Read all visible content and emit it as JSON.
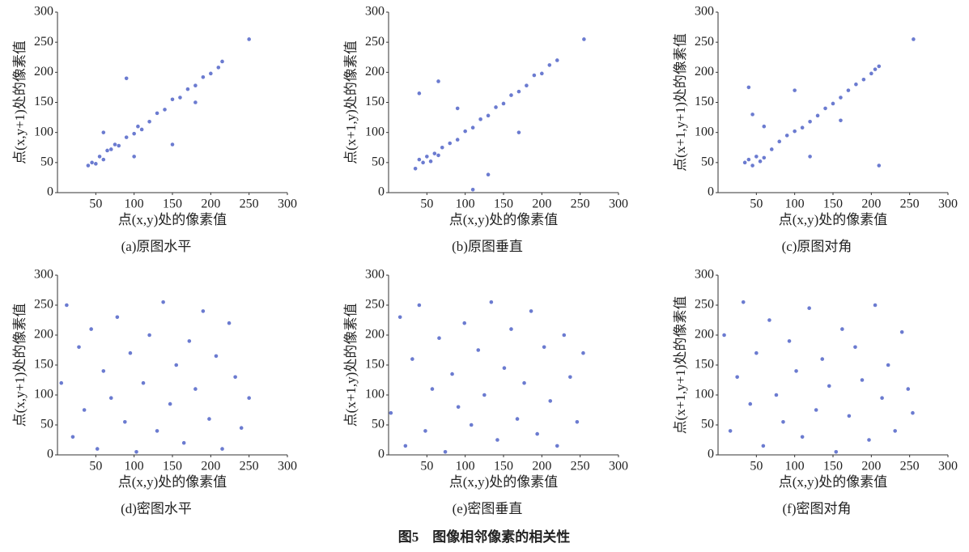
{
  "figure_caption": "图5　图像相邻像素的相关性",
  "chart_data": [
    {
      "type": "scatter",
      "caption": "(a)原图水平",
      "xlabel": "点(x,y)处的像素值",
      "ylabel": "点(x,y+1)处的像素值",
      "color": "#3a4fc0",
      "xlim": [
        0,
        300
      ],
      "ylim": [
        0,
        300
      ],
      "xticks": [
        50,
        100,
        150,
        200,
        250,
        300
      ],
      "yticks": [
        0,
        50,
        100,
        150,
        200,
        250,
        300
      ],
      "x": [
        40,
        45,
        50,
        55,
        60,
        65,
        70,
        75,
        80,
        90,
        100,
        105,
        110,
        120,
        130,
        140,
        150,
        160,
        170,
        180,
        190,
        200,
        210,
        215,
        90,
        150,
        250,
        60,
        100,
        180
      ],
      "y": [
        45,
        50,
        48,
        60,
        55,
        70,
        72,
        80,
        78,
        92,
        98,
        110,
        105,
        118,
        132,
        138,
        155,
        158,
        172,
        178,
        192,
        198,
        208,
        218,
        190,
        80,
        255,
        100,
        60,
        150
      ]
    },
    {
      "type": "scatter",
      "caption": "(b)原图垂直",
      "xlabel": "点(x,y)处的像素值",
      "ylabel": "点(x+1,y)处的像素值",
      "color": "#3a4fc0",
      "xlim": [
        0,
        300
      ],
      "ylim": [
        0,
        300
      ],
      "xticks": [
        50,
        100,
        150,
        200,
        250,
        300
      ],
      "yticks": [
        0,
        50,
        100,
        150,
        200,
        250,
        300
      ],
      "x": [
        35,
        40,
        45,
        50,
        55,
        60,
        65,
        70,
        80,
        90,
        100,
        110,
        120,
        130,
        140,
        150,
        160,
        170,
        180,
        190,
        200,
        210,
        220,
        255,
        65,
        110,
        40,
        170,
        90,
        130
      ],
      "y": [
        40,
        55,
        50,
        60,
        52,
        65,
        62,
        75,
        82,
        88,
        102,
        108,
        122,
        128,
        142,
        148,
        162,
        168,
        178,
        195,
        198,
        212,
        220,
        255,
        185,
        5,
        165,
        100,
        140,
        30
      ]
    },
    {
      "type": "scatter",
      "caption": "(c)原图对角",
      "xlabel": "点(x,y)处的像素值",
      "ylabel": "点(x+1,y+1)处的像素值",
      "color": "#3a4fc0",
      "xlim": [
        0,
        300
      ],
      "ylim": [
        0,
        300
      ],
      "xticks": [
        50,
        100,
        150,
        200,
        250,
        300
      ],
      "yticks": [
        0,
        50,
        100,
        150,
        200,
        250,
        300
      ],
      "x": [
        35,
        40,
        45,
        50,
        55,
        60,
        70,
        80,
        90,
        100,
        110,
        120,
        130,
        140,
        150,
        160,
        170,
        180,
        190,
        200,
        205,
        210,
        255,
        40,
        100,
        60,
        210,
        160,
        120,
        45
      ],
      "y": [
        50,
        55,
        45,
        60,
        52,
        58,
        72,
        85,
        95,
        102,
        108,
        118,
        128,
        140,
        148,
        158,
        170,
        180,
        188,
        198,
        205,
        210,
        255,
        175,
        170,
        110,
        45,
        120,
        60,
        130
      ]
    },
    {
      "type": "scatter",
      "caption": "(d)密图水平",
      "xlabel": "点(x,y)处的像素值",
      "ylabel": "点(x,y+1)处的像素值",
      "color": "#3a4fc0",
      "xlim": [
        0,
        300
      ],
      "ylim": [
        0,
        300
      ],
      "xticks": [
        50,
        100,
        150,
        200,
        250,
        300
      ],
      "yticks": [
        0,
        50,
        100,
        150,
        200,
        250,
        300
      ],
      "x": [
        5,
        12,
        20,
        28,
        35,
        44,
        52,
        60,
        70,
        78,
        88,
        95,
        103,
        112,
        120,
        130,
        138,
        147,
        155,
        165,
        172,
        180,
        190,
        198,
        207,
        215,
        224,
        232,
        240,
        250
      ],
      "y": [
        120,
        250,
        30,
        180,
        75,
        210,
        10,
        140,
        95,
        230,
        55,
        170,
        5,
        120,
        200,
        40,
        255,
        85,
        150,
        20,
        190,
        110,
        240,
        60,
        165,
        10,
        220,
        130,
        45,
        95
      ]
    },
    {
      "type": "scatter",
      "caption": "(e)密图垂直",
      "xlabel": "点(x,y)处的像素值",
      "ylabel": "点(x+1,y)处的像素值",
      "color": "#3a4fc0",
      "xlim": [
        0,
        300
      ],
      "ylim": [
        0,
        300
      ],
      "xticks": [
        50,
        100,
        150,
        200,
        250,
        300
      ],
      "yticks": [
        0,
        50,
        100,
        150,
        200,
        250,
        300
      ],
      "x": [
        3,
        15,
        22,
        31,
        40,
        48,
        57,
        66,
        74,
        83,
        91,
        99,
        108,
        117,
        125,
        134,
        142,
        151,
        160,
        168,
        177,
        186,
        194,
        203,
        211,
        220,
        229,
        237,
        246,
        254
      ],
      "y": [
        70,
        230,
        15,
        160,
        250,
        40,
        110,
        195,
        5,
        135,
        80,
        220,
        50,
        175,
        100,
        255,
        25,
        145,
        210,
        60,
        120,
        240,
        35,
        180,
        90,
        15,
        200,
        130,
        55,
        170
      ]
    },
    {
      "type": "scatter",
      "caption": "(f)密图对角",
      "xlabel": "点(x,y)处的像素值",
      "ylabel": "点(x+1,y+1)处的像素值",
      "color": "#3a4fc0",
      "xlim": [
        0,
        300
      ],
      "ylim": [
        0,
        300
      ],
      "xticks": [
        50,
        100,
        150,
        200,
        250,
        300
      ],
      "yticks": [
        0,
        50,
        100,
        150,
        200,
        250,
        300
      ],
      "x": [
        8,
        16,
        25,
        33,
        42,
        50,
        59,
        67,
        76,
        85,
        93,
        102,
        110,
        119,
        128,
        136,
        145,
        154,
        162,
        171,
        179,
        188,
        197,
        205,
        214,
        222,
        231,
        240,
        248,
        254
      ],
      "y": [
        200,
        40,
        130,
        255,
        85,
        170,
        15,
        225,
        100,
        55,
        190,
        140,
        30,
        245,
        75,
        160,
        115,
        5,
        210,
        65,
        180,
        125,
        25,
        250,
        95,
        150,
        40,
        205,
        110,
        70
      ]
    }
  ]
}
